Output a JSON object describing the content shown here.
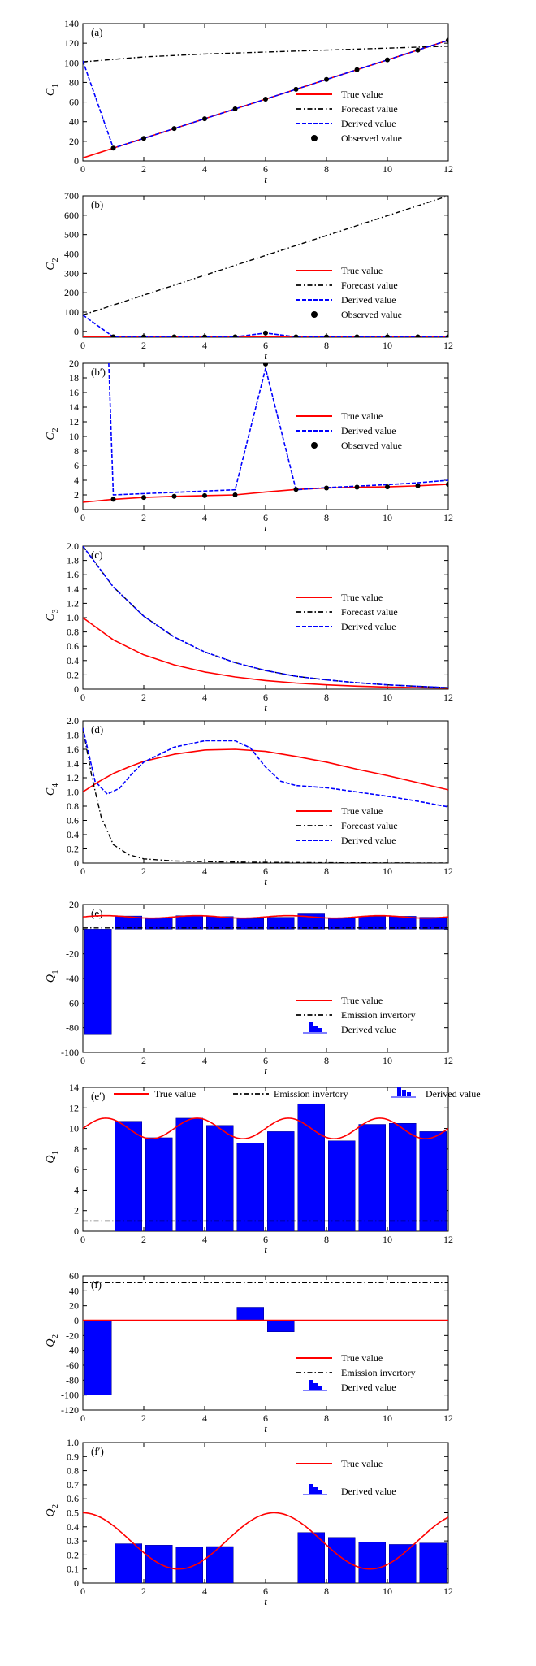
{
  "colors": {
    "true": "#ff0000",
    "forecast": "#000000",
    "derived": "#0000ff",
    "bar": "#0000ff"
  },
  "chart_data": [
    {
      "id": "a",
      "type": "line",
      "panel_label": "(a)",
      "xlabel": "t",
      "ylabel": "C",
      "ylabel_sub": "1",
      "xlim": [
        0,
        12
      ],
      "ylim": [
        0,
        140
      ],
      "xticks": [
        0,
        2,
        4,
        6,
        8,
        10,
        12
      ],
      "yticks": [
        0,
        20,
        40,
        60,
        80,
        100,
        120,
        140
      ],
      "legend": {
        "position": "bottom-right",
        "entries": [
          "True value",
          "Forecast value",
          "Derived value",
          "Observed value"
        ]
      },
      "series": [
        {
          "name": "True value",
          "style": "true",
          "x": [
            0,
            1,
            2,
            3,
            4,
            5,
            6,
            7,
            8,
            9,
            10,
            11,
            12
          ],
          "y": [
            3,
            13,
            23,
            33,
            43,
            53,
            63,
            73,
            83,
            93,
            103,
            113,
            123
          ]
        },
        {
          "name": "Forecast value",
          "style": "forecast",
          "x": [
            0,
            2,
            4,
            6,
            8,
            10,
            12
          ],
          "y": [
            101,
            106,
            109,
            111,
            113,
            115,
            117
          ]
        },
        {
          "name": "Derived value",
          "style": "derived",
          "x": [
            0,
            1,
            2,
            3,
            4,
            5,
            6,
            7,
            8,
            9,
            10,
            11,
            12
          ],
          "y": [
            102,
            13,
            23,
            33,
            43,
            53,
            63,
            73,
            83,
            93,
            103,
            113,
            123
          ]
        },
        {
          "name": "Observed value",
          "style": "observed",
          "x": [
            1,
            2,
            3,
            4,
            5,
            6,
            7,
            8,
            9,
            10,
            11,
            12
          ],
          "y": [
            13,
            23,
            33,
            43,
            53,
            63,
            73,
            83,
            93,
            103,
            113,
            123
          ]
        }
      ]
    },
    {
      "id": "b",
      "type": "line",
      "panel_label": "(b)",
      "xlabel": "t",
      "ylabel": "C",
      "ylabel_sub": "2",
      "xlim": [
        0,
        12
      ],
      "ylim": [
        -30,
        700
      ],
      "xticks": [
        0,
        2,
        4,
        6,
        8,
        10,
        12
      ],
      "yticks": [
        0,
        100,
        200,
        300,
        400,
        500,
        600,
        700
      ],
      "legend": {
        "position": "bottom-right",
        "entries": [
          "True value",
          "Forecast value",
          "Derived value",
          "Observed value"
        ]
      },
      "series": [
        {
          "name": "True value",
          "style": "true",
          "x": [
            0,
            12
          ],
          "y": [
            -28,
            -28
          ]
        },
        {
          "name": "Forecast value",
          "style": "forecast",
          "x": [
            0,
            12
          ],
          "y": [
            85,
            700
          ]
        },
        {
          "name": "Derived value",
          "style": "derived",
          "x": [
            0,
            1,
            5,
            6,
            7,
            12
          ],
          "y": [
            85,
            -28,
            -28,
            -8,
            -28,
            -28
          ]
        },
        {
          "name": "Observed value",
          "style": "observed",
          "x": [
            1,
            2,
            3,
            4,
            5,
            6,
            7,
            8,
            9,
            10,
            11,
            12
          ],
          "y": [
            -28,
            -28,
            -28,
            -28,
            -28,
            -8,
            -28,
            -28,
            -28,
            -28,
            -28,
            -28
          ]
        }
      ]
    },
    {
      "id": "b2",
      "type": "line",
      "panel_label": "(b′)",
      "xlabel": "t",
      "ylabel": "C",
      "ylabel_sub": "2",
      "xlim": [
        0,
        12
      ],
      "ylim": [
        0,
        20
      ],
      "xticks": [
        0,
        2,
        4,
        6,
        8,
        10,
        12
      ],
      "yticks": [
        0,
        2,
        4,
        6,
        8,
        10,
        12,
        14,
        16,
        18,
        20
      ],
      "legend": {
        "position": "right",
        "entries": [
          "True value",
          "Derived value",
          "Observed value"
        ]
      },
      "series": [
        {
          "name": "True value",
          "style": "true",
          "x": [
            0,
            1,
            2,
            3,
            4,
            5,
            6,
            7,
            8,
            9,
            10,
            11,
            12
          ],
          "y": [
            1.0,
            1.4,
            1.65,
            1.8,
            1.9,
            2.0,
            2.4,
            2.75,
            2.95,
            3.05,
            3.1,
            3.25,
            3.45
          ]
        },
        {
          "name": "Derived value",
          "style": "derived",
          "x": [
            0.85,
            1,
            5,
            6,
            7,
            8,
            9,
            10,
            11,
            12
          ],
          "y": [
            20,
            2.0,
            2.7,
            19.3,
            2.7,
            3.0,
            3.2,
            3.4,
            3.65,
            4.0
          ]
        },
        {
          "name": "Observed value",
          "style": "observed",
          "x": [
            1,
            2,
            3,
            4,
            5,
            6,
            7,
            8,
            9,
            10,
            11,
            12
          ],
          "y": [
            1.4,
            1.65,
            1.8,
            1.9,
            2.0,
            19.9,
            2.75,
            2.95,
            3.05,
            3.1,
            3.25,
            3.45
          ]
        }
      ]
    },
    {
      "id": "c",
      "type": "line",
      "panel_label": "(c)",
      "xlabel": "t",
      "ylabel": "C",
      "ylabel_sub": "3",
      "xlim": [
        0,
        12
      ],
      "ylim": [
        0,
        2.0
      ],
      "xticks": [
        0,
        2,
        4,
        6,
        8,
        10,
        12
      ],
      "yticks": [
        "0",
        "0.2",
        "0.4",
        "0.6",
        "0.8",
        "1.0",
        "1.2",
        "1.4",
        "1.6",
        "1.8",
        "2.0"
      ],
      "legend": {
        "position": "right",
        "entries": [
          "True value",
          "Forecast value",
          "Derived value"
        ]
      },
      "series": [
        {
          "name": "True value",
          "style": "true",
          "x": [
            0,
            1,
            2,
            3,
            4,
            5,
            6,
            7,
            8,
            9,
            10,
            11,
            12
          ],
          "y": [
            1.0,
            0.69,
            0.48,
            0.34,
            0.24,
            0.17,
            0.12,
            0.085,
            0.06,
            0.042,
            0.03,
            0.02,
            0.015
          ]
        },
        {
          "name": "Forecast value",
          "style": "forecast",
          "x": [
            0,
            1,
            2,
            3,
            4,
            5,
            6,
            7,
            8,
            9,
            10,
            11,
            12
          ],
          "y": [
            2.0,
            1.43,
            1.02,
            0.73,
            0.52,
            0.37,
            0.26,
            0.18,
            0.13,
            0.09,
            0.06,
            0.04,
            0.02
          ]
        },
        {
          "name": "Derived value",
          "style": "derived",
          "x": [
            0,
            1,
            2,
            3,
            4,
            5,
            6,
            7,
            8,
            9,
            10,
            11,
            12
          ],
          "y": [
            2.0,
            1.43,
            1.02,
            0.73,
            0.52,
            0.37,
            0.26,
            0.18,
            0.13,
            0.09,
            0.06,
            0.04,
            0.02
          ]
        }
      ]
    },
    {
      "id": "d",
      "type": "line",
      "panel_label": "(d)",
      "xlabel": "t",
      "ylabel": "C",
      "ylabel_sub": "4",
      "xlim": [
        0,
        12
      ],
      "ylim": [
        0,
        2.0
      ],
      "xticks": [
        0,
        2,
        4,
        6,
        8,
        10,
        12
      ],
      "yticks": [
        "0",
        "0.2",
        "0.4",
        "0.6",
        "0.8",
        "1.0",
        "1.2",
        "1.4",
        "1.6",
        "1.8",
        "2.0"
      ],
      "legend": {
        "position": "bottom-right",
        "entries": [
          "True value",
          "Forecast value",
          "Derived value"
        ]
      },
      "series": [
        {
          "name": "True value",
          "style": "true",
          "x": [
            0,
            0.5,
            1,
            1.5,
            2,
            3,
            4,
            5,
            6,
            7,
            8,
            9,
            10,
            11,
            12
          ],
          "y": [
            1.0,
            1.14,
            1.26,
            1.35,
            1.43,
            1.53,
            1.59,
            1.6,
            1.57,
            1.5,
            1.42,
            1.32,
            1.23,
            1.13,
            1.03
          ]
        },
        {
          "name": "Forecast value",
          "style": "forecast",
          "x": [
            0,
            0.3,
            0.6,
            1.0,
            1.5,
            2,
            3,
            4,
            6,
            8,
            12
          ],
          "y": [
            1.9,
            1.2,
            0.65,
            0.26,
            0.12,
            0.06,
            0.03,
            0.02,
            0.01,
            0.005,
            0.0
          ]
        },
        {
          "name": "Derived value",
          "style": "derived",
          "x": [
            0,
            0.4,
            0.8,
            1.2,
            1.6,
            2,
            3,
            4,
            5,
            5.5,
            6,
            6.5,
            7,
            8,
            9,
            10,
            11,
            12
          ],
          "y": [
            1.9,
            1.15,
            0.97,
            1.05,
            1.25,
            1.42,
            1.63,
            1.72,
            1.72,
            1.62,
            1.35,
            1.15,
            1.09,
            1.06,
            1.0,
            0.94,
            0.87,
            0.79
          ]
        }
      ]
    },
    {
      "id": "e",
      "type": "bar",
      "panel_label": "(e)",
      "xlabel": "t",
      "ylabel": "Q",
      "ylabel_sub": "1",
      "xlim": [
        0,
        12
      ],
      "ylim": [
        -100,
        20
      ],
      "xticks": [
        0,
        2,
        4,
        6,
        8,
        10,
        12
      ],
      "yticks": [
        -100,
        -80,
        -60,
        -40,
        -20,
        0,
        20
      ],
      "legend": {
        "position": "bottom-right",
        "entries": [
          "True value",
          "Emission invertory",
          "Derived value"
        ]
      },
      "bars": {
        "x": [
          0.5,
          1.5,
          2.5,
          3.5,
          4.5,
          5.5,
          6.5,
          7.5,
          8.5,
          9.5,
          10.5,
          11.5
        ],
        "values": [
          -85,
          10.7,
          9.1,
          11.0,
          10.3,
          8.6,
          9.7,
          12.4,
          8.8,
          10.4,
          10.5,
          9.7
        ]
      },
      "series": [
        {
          "name": "True value",
          "style": "true",
          "func": "sin",
          "base": 10,
          "amp": 1,
          "period": 3,
          "phase": 0
        },
        {
          "name": "Emission invertory",
          "style": "forecast",
          "x": [
            0,
            12
          ],
          "y": [
            1,
            1
          ]
        }
      ]
    },
    {
      "id": "e2",
      "type": "bar",
      "panel_label": "(e′)",
      "xlabel": "t",
      "ylabel": "Q",
      "ylabel_sub": "1",
      "xlim": [
        0,
        12
      ],
      "ylim": [
        0,
        14
      ],
      "xticks": [
        0,
        2,
        4,
        6,
        8,
        10,
        12
      ],
      "yticks": [
        0,
        2,
        4,
        6,
        8,
        10,
        12,
        14
      ],
      "legend": {
        "position": "top",
        "entries": [
          "True value",
          "Emission invertory",
          "Derived value"
        ]
      },
      "bars": {
        "x": [
          1.5,
          2.5,
          3.5,
          4.5,
          5.5,
          6.5,
          7.5,
          8.5,
          9.5,
          10.5,
          11.5
        ],
        "values": [
          10.7,
          9.1,
          11.0,
          10.3,
          8.6,
          9.7,
          12.4,
          8.8,
          10.4,
          10.5,
          9.7
        ]
      },
      "series": [
        {
          "name": "True value",
          "style": "true",
          "func": "sin",
          "base": 10,
          "amp": 1,
          "period": 3,
          "phase": 0
        },
        {
          "name": "Emission invertory",
          "style": "forecast",
          "x": [
            0,
            12
          ],
          "y": [
            1,
            1
          ]
        }
      ]
    },
    {
      "id": "f",
      "type": "bar",
      "panel_label": "(f)",
      "xlabel": "t",
      "ylabel": "Q",
      "ylabel_sub": "2",
      "xlim": [
        0,
        12
      ],
      "ylim": [
        -120,
        60
      ],
      "xticks": [
        0,
        2,
        4,
        6,
        8,
        10,
        12
      ],
      "yticks": [
        -120,
        -100,
        -80,
        -60,
        -40,
        -20,
        0,
        20,
        40,
        60
      ],
      "legend": {
        "position": "bottom-right",
        "entries": [
          "True value",
          "Emission invertory",
          "Derived value"
        ]
      },
      "bars": {
        "x": [
          0.5,
          5.5,
          6.5
        ],
        "values": [
          -100,
          18,
          -15
        ]
      },
      "series": [
        {
          "name": "True value",
          "style": "true",
          "x": [
            0,
            12
          ],
          "y": [
            0.5,
            0.5
          ]
        },
        {
          "name": "Emission invertory",
          "style": "forecast",
          "x": [
            0,
            12
          ],
          "y": [
            51,
            51
          ]
        }
      ]
    },
    {
      "id": "f2",
      "type": "bar",
      "panel_label": "(f′)",
      "xlabel": "t",
      "ylabel": "Q",
      "ylabel_sub": "2",
      "xlim": [
        0,
        12
      ],
      "ylim": [
        0,
        1.0
      ],
      "xticks": [
        0,
        2,
        4,
        6,
        8,
        10,
        12
      ],
      "yticks": [
        "0",
        "0.1",
        "0.2",
        "0.3",
        "0.4",
        "0.5",
        "0.6",
        "0.7",
        "0.8",
        "0.9",
        "1.0"
      ],
      "legend": {
        "position": "top-right",
        "entries": [
          "True value",
          "Derived value"
        ]
      },
      "bars": {
        "x": [
          1.5,
          2.5,
          3.5,
          4.5,
          7.5,
          8.5,
          9.5,
          10.5,
          11.5
        ],
        "values": [
          0.28,
          0.27,
          0.255,
          0.26,
          0.36,
          0.325,
          0.29,
          0.275,
          0.285
        ]
      },
      "series": [
        {
          "name": "True value",
          "style": "true",
          "func": "cos",
          "base": 0.3,
          "amp": 0.2,
          "period": 6.283,
          "phase": 0
        }
      ]
    }
  ]
}
